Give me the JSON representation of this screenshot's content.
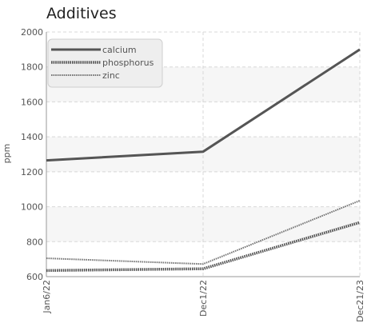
{
  "chart_data": {
    "type": "line",
    "title": "Additives",
    "ylabel": "ppm",
    "xlabel": "",
    "ylim": [
      600,
      2000
    ],
    "yticks": [
      600,
      800,
      1000,
      1200,
      1400,
      1600,
      1800,
      2000
    ],
    "categories": [
      "Jan6/22",
      "Dec1/22",
      "Dec21/23"
    ],
    "grid": true,
    "legend_position": "top-left",
    "series": [
      {
        "name": "calcium",
        "values": [
          1265,
          1315,
          1900
        ],
        "color": "#555555",
        "style": "solid"
      },
      {
        "name": "phosphorus",
        "values": [
          635,
          645,
          910
        ],
        "color": "#555555",
        "style": "dotted"
      },
      {
        "name": "zinc",
        "values": [
          705,
          672,
          1035
        ],
        "color": "#777777",
        "style": "dotted-thin"
      }
    ]
  }
}
